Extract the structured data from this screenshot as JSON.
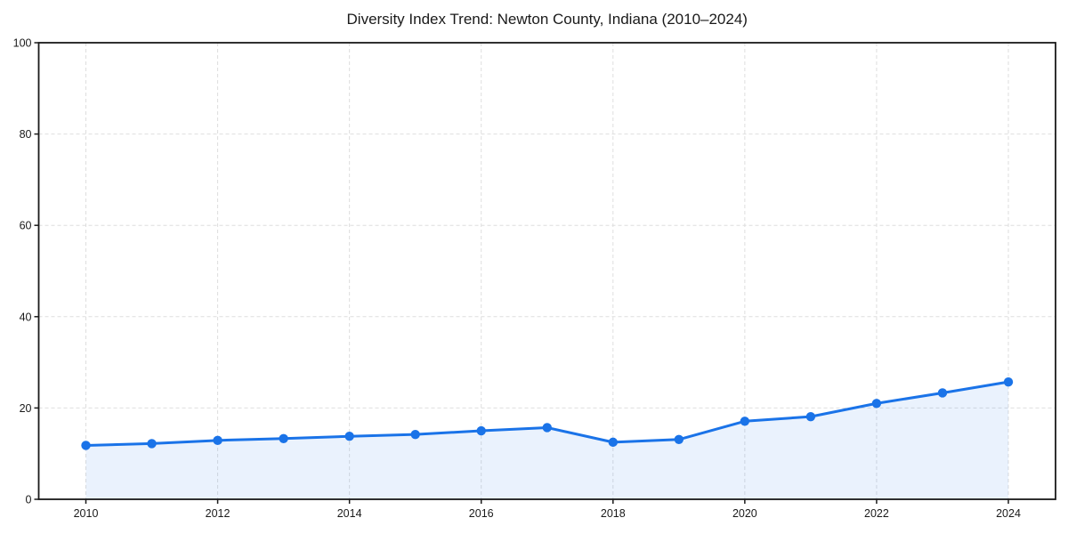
{
  "chart_data": {
    "type": "line",
    "area_fill": true,
    "marker": "circle",
    "title": "Diversity Index Trend: Newton County, Indiana (2010–2024)",
    "x": [
      2010,
      2011,
      2012,
      2013,
      2014,
      2015,
      2016,
      2017,
      2018,
      2019,
      2020,
      2021,
      2022,
      2023,
      2024
    ],
    "values": [
      11.8,
      12.2,
      12.9,
      13.3,
      13.8,
      14.2,
      15.0,
      15.7,
      12.5,
      13.1,
      17.1,
      18.1,
      21.0,
      23.3,
      25.7
    ],
    "xlabel": "",
    "ylabel": "",
    "ylim": [
      0,
      100
    ],
    "xticks": [
      2010,
      2012,
      2014,
      2016,
      2018,
      2020,
      2022,
      2024
    ],
    "yticks": [
      0,
      20,
      40,
      60,
      80,
      100
    ],
    "grid": true,
    "grid_style": "dashed",
    "legend": false
  },
  "style": {
    "line_color": "#1a73e8",
    "marker_color": "#1a73e8",
    "fill_color": "#1a73e8",
    "fill_opacity": 0.09,
    "grid_color": "#dedede",
    "axis_color": "#1a1a1a",
    "tick_label_color": "#1a1a1a",
    "title_color": "#1a1a1a",
    "background": "#ffffff"
  }
}
